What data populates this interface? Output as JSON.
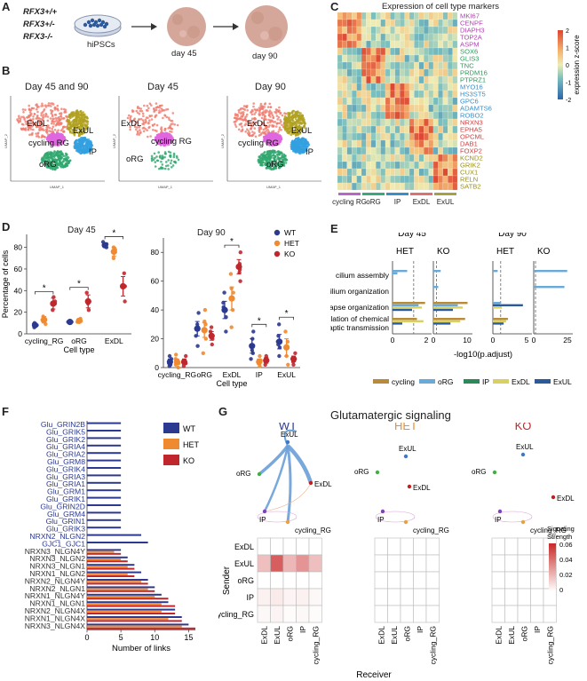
{
  "panel_letters": {
    "a": "A",
    "b": "B",
    "c": "C",
    "d": "D",
    "e": "E",
    "f": "F",
    "g": "G"
  },
  "panel_a": {
    "genotypes": [
      "RFX3+/+",
      "RFX3+/-",
      "RFX3-/-"
    ],
    "dish_label": "hiPSCs",
    "organoid_labels": [
      "day 45",
      "day 90"
    ]
  },
  "panel_b": {
    "titles": [
      "Day 45 and 90",
      "Day 45",
      "Day 90"
    ],
    "axis_x": "UMAP_1",
    "axis_y": "UMAP_2",
    "cluster_labels": [
      "ExDL",
      "ExUL",
      "cycling RG",
      "IP",
      "oRG"
    ],
    "cluster_colors": {
      "ExDL": "#f07c6e",
      "ExUL": "#b0a11f",
      "cycling RG": "#e066e0",
      "IP": "#33a0e0",
      "oRG": "#2fa86e"
    }
  },
  "panel_c": {
    "title": "Expression of cell type markers",
    "genes": [
      "MKI67",
      "CENPF",
      "DIAPH3",
      "TOP2A",
      "ASPM",
      "SOX6",
      "GLIS3",
      "TNC",
      "PRDM16",
      "PTPRZ1",
      "MYO16",
      "HS3ST5",
      "GPC6",
      "ADAMTS6",
      "ROBO2",
      "NRXN3",
      "EPHA5",
      "OPCML",
      "DAB1",
      "FOXP2",
      "KCND2",
      "GRIK2",
      "CUX1",
      "RELN",
      "SATB2"
    ],
    "gene_colors": [
      "#b044b0",
      "#b044b0",
      "#b044b0",
      "#b044b0",
      "#b044b0",
      "#2f9a5a",
      "#2f9a5a",
      "#2f9a5a",
      "#2f9a5a",
      "#2f9a5a",
      "#3a8fc8",
      "#3a8fc8",
      "#3a8fc8",
      "#3a8fc8",
      "#3a8fc8",
      "#d04040",
      "#d04040",
      "#d04040",
      "#d04040",
      "#d04040",
      "#9a9020",
      "#9a9020",
      "#9a9020",
      "#9a9020",
      "#9a9020"
    ],
    "groups": [
      "cycling RG",
      "oRG",
      "IP",
      "ExDL",
      "ExUL"
    ],
    "group_colors": [
      "#b866c8",
      "#3aa87a",
      "#3a8fc8",
      "#e07070",
      "#a8a040"
    ],
    "colorbar_label": "expression z-score",
    "colorbar_ticks": [
      "2",
      "1",
      "0",
      "-1",
      "-2"
    ]
  },
  "panel_d": {
    "ylabel": "Percentage of cells",
    "xlabel": "Cell type",
    "legend": [
      "WT",
      "HET",
      "KO"
    ],
    "legend_colors": [
      "#2b3990",
      "#f08a30",
      "#c0272d"
    ],
    "sig": "*",
    "day45": {
      "title": "Day 45",
      "categories": [
        "cycling_RG",
        "oRG",
        "ExDL"
      ],
      "yticks": [
        "0",
        "20",
        "40",
        "60",
        "80"
      ],
      "ymax": 92,
      "means": {
        "WT": [
          8,
          11,
          82
        ],
        "HET": [
          13,
          12,
          76
        ],
        "KO": [
          28,
          30,
          44
        ]
      },
      "errs": {
        "WT": [
          1.5,
          1,
          2
        ],
        "HET": [
          3,
          2,
          4
        ],
        "KO": [
          5,
          6,
          9
        ]
      },
      "points": {
        "WT": [
          [
            6,
            9,
            8,
            10
          ],
          [
            10,
            11,
            12,
            11
          ],
          [
            80,
            83,
            85,
            81
          ]
        ],
        "HET": [
          [
            9,
            13,
            16,
            12
          ],
          [
            11,
            12,
            14,
            13
          ],
          [
            70,
            78,
            80,
            76
          ]
        ],
        "KO": [
          [
            22,
            28,
            34,
            30
          ],
          [
            22,
            30,
            38,
            28
          ],
          [
            30,
            44,
            56,
            44
          ]
        ]
      }
    },
    "day90": {
      "title": "Day 90",
      "categories": [
        "cycling_RG",
        "oRG",
        "ExDL",
        "IP",
        "ExUL"
      ],
      "yticks": [
        "0",
        "20",
        "40",
        "60",
        "80"
      ],
      "ymax": 90,
      "means": {
        "WT": [
          4,
          27,
          40,
          15,
          18
        ],
        "HET": [
          4,
          26,
          48,
          4,
          14
        ],
        "KO": [
          4,
          22,
          70,
          5,
          6
        ]
      },
      "errs": {
        "WT": [
          2,
          5,
          6,
          5,
          5
        ],
        "HET": [
          2,
          5,
          8,
          2,
          6
        ],
        "KO": [
          2,
          3,
          5,
          2,
          2
        ]
      },
      "points": {
        "WT": [
          [
            1,
            3,
            6,
            8,
            2,
            4
          ],
          [
            15,
            22,
            30,
            38,
            27,
            28
          ],
          [
            25,
            35,
            45,
            52,
            40,
            42
          ],
          [
            6,
            10,
            20,
            25,
            12,
            15
          ],
          [
            8,
            14,
            22,
            30,
            16,
            18
          ]
        ],
        "HET": [
          [
            0,
            2,
            5,
            9,
            3,
            6
          ],
          [
            10,
            20,
            30,
            40,
            25,
            32
          ],
          [
            28,
            40,
            55,
            65,
            48,
            52
          ],
          [
            1,
            3,
            5,
            8,
            4,
            3
          ],
          [
            2,
            8,
            15,
            25,
            14,
            18
          ]
        ],
        "KO": [
          [
            1,
            3,
            5,
            8,
            4,
            3
          ],
          [
            16,
            20,
            25,
            28,
            22,
            21
          ],
          [
            60,
            66,
            72,
            80,
            70,
            68
          ],
          [
            2,
            4,
            6,
            8,
            5,
            4
          ],
          [
            2,
            4,
            6,
            10,
            6,
            5
          ]
        ]
      },
      "sig_pairs": [
        2,
        3,
        4
      ]
    }
  },
  "panel_e": {
    "day_labels": [
      "Day 45",
      "Day 90"
    ],
    "geno_labels": [
      "HET",
      "KO",
      "HET",
      "KO"
    ],
    "terms": [
      "cilium assembly",
      "cilium organization",
      "synapse organization",
      "modulation of chemical",
      "synaptic transmission"
    ],
    "xlabel": "-log10(p.adjust)",
    "xticks": [
      [
        "0",
        "2"
      ],
      [
        "0",
        "10"
      ],
      [
        "0",
        "5"
      ],
      [
        "0",
        "25"
      ]
    ],
    "legend": [
      "cycling",
      "oRG",
      "IP",
      "ExDL",
      "ExUL"
    ],
    "legend_colors": [
      "#b88a3a",
      "#6aaad8",
      "#2a8a5a",
      "#d8d060",
      "#2a5a9a"
    ],
    "facets": [
      {
        "max": 2.4,
        "bars": [
          [
            [
              1,
              0.9
            ],
            [
              1,
              0.3
            ]
          ],
          [],
          [
            [
              0,
              2.0
            ],
            [
              1,
              1.6
            ],
            [
              3,
              1.8
            ],
            [
              4,
              1.2
            ]
          ],
          [
            [
              0,
              1.5
            ],
            [
              3,
              1.9
            ],
            [
              4,
              0.6
            ]
          ]
        ]
      },
      {
        "max": 16,
        "bars": [
          [
            [
              1,
              3
            ]
          ],
          [
            [
              1,
              2
            ]
          ],
          [
            [
              0,
              14
            ],
            [
              1,
              10
            ],
            [
              3,
              12
            ],
            [
              4,
              8
            ]
          ],
          [
            [
              0,
              13
            ],
            [
              3,
              11
            ],
            [
              4,
              7
            ]
          ]
        ]
      },
      {
        "max": 6.5,
        "bars": [
          [
            [
              1,
              0.8
            ]
          ],
          [],
          [
            [
              1,
              1.2
            ],
            [
              4,
              5.0
            ],
            [
              3,
              1.5
            ]
          ],
          [
            [
              0,
              2.5
            ],
            [
              3,
              2.2
            ],
            [
              4,
              1.8
            ]
          ]
        ]
      },
      {
        "max": 28,
        "bars": [
          [
            [
              1,
              24
            ]
          ],
          [
            [
              1,
              22
            ]
          ],
          [],
          []
        ]
      }
    ]
  },
  "panel_f": {
    "labels": [
      "Glu_GRIN2B",
      "Glu_GRIK5",
      "Glu_GRIK2",
      "Glu_GRIA4",
      "Glu_GRIA2",
      "Glu_GRM8",
      "Glu_GRIK4",
      "Glu_GRIA3",
      "Glu_GRIA1",
      "Glu_GRM1",
      "Glu_GRIK1",
      "Glu_GRIN2D",
      "Glu_GRM4",
      "Glu_GRIN1",
      "Glu_GRIK3",
      "NRXN2_NLGN2",
      "GJC1_GJC1",
      "NRXN3_NLGN4Y",
      "NRXN3_NLGN2",
      "NRXN3_NLGN1",
      "NRXN1_NLGN2",
      "NRXN2_NLGN4Y",
      "NRXN2_NLGN1",
      "NRXN1_NLGN4Y",
      "NRXN1_NLGN1",
      "NRXN2_NLGN4X",
      "NRXN1_NLGN4X",
      "NRXN3_NLGN4X"
    ],
    "label_colors": [
      "#2b3990",
      "#2b3990",
      "#2b3990",
      "#2b3990",
      "#2b3990",
      "#2b3990",
      "#2b3990",
      "#2b3990",
      "#2b3990",
      "#2b3990",
      "#2b3990",
      "#2b3990",
      "#2b3990",
      "#2b3990",
      "#2b3990",
      "#2b3990",
      "#2b3990",
      "#333",
      "#333",
      "#333",
      "#333",
      "#333",
      "#333",
      "#333",
      "#333",
      "#333",
      "#333",
      "#333"
    ],
    "values": {
      "WT": [
        5,
        5,
        5,
        5,
        5,
        5,
        5,
        5,
        5,
        5,
        5,
        5,
        5,
        5,
        5,
        8,
        9,
        5,
        6,
        7,
        8,
        9,
        10,
        11,
        12,
        13,
        14,
        15
      ],
      "HET": [
        0,
        0,
        0,
        0,
        0,
        0,
        0,
        0,
        0,
        0,
        0,
        0,
        0,
        0,
        0,
        0,
        0,
        4,
        5,
        6,
        6,
        8,
        9,
        10,
        11,
        11,
        12,
        14
      ],
      "KO": [
        0,
        0,
        0,
        0,
        0,
        0,
        0,
        0,
        0,
        0,
        0,
        0,
        0,
        0,
        0,
        0,
        0,
        5,
        6,
        7,
        7,
        9,
        10,
        12,
        13,
        13,
        14,
        16
      ]
    },
    "xticks": [
      "0",
      "5",
      "10",
      "15"
    ],
    "xmax": 16,
    "xlabel": "Number of links",
    "legend": [
      "WT",
      "HET",
      "KO"
    ],
    "legend_colors": [
      "#2b3990",
      "#f08a30",
      "#c0272d"
    ]
  },
  "panel_g": {
    "title": "Glutamatergic signaling",
    "conditions": [
      "WT",
      "HET",
      "KO"
    ],
    "condition_colors": [
      "#2b3990",
      "#f08a30",
      "#c0272d"
    ],
    "nodes": [
      "ExUL",
      "oRG",
      "ExDL",
      "IP",
      "cycling_RG"
    ],
    "node_colors": [
      "#3a7ac8",
      "#40b040",
      "#c02020",
      "#8040c0",
      "#e8a040"
    ],
    "ylabel": "Sender",
    "xlabel": "Receiver",
    "matrix_labels": [
      "ExDL",
      "ExUL",
      "oRG",
      "IP",
      "cycling_RG"
    ],
    "colorbar_title": "Signaling Strength",
    "colorbar_ticks": [
      "0.06",
      "0.04",
      "0.02",
      "0"
    ],
    "vmax": 0.06,
    "matrices": [
      [
        [
          0,
          0,
          0,
          0,
          0
        ],
        [
          0.018,
          0.045,
          0.02,
          0.03,
          0.018
        ],
        [
          0,
          0,
          0,
          0,
          0
        ],
        [
          0.004,
          0.006,
          0.003,
          0.004,
          0.002
        ],
        [
          0.002,
          0.003,
          0.001,
          0.002,
          0.001
        ]
      ],
      [
        [
          0,
          0,
          0,
          0,
          0
        ],
        [
          0,
          0,
          0,
          0,
          0
        ],
        [
          0,
          0,
          0,
          0,
          0
        ],
        [
          0,
          0,
          0,
          0,
          0
        ],
        [
          0,
          0,
          0,
          0,
          0
        ]
      ],
      [
        [
          0,
          0,
          0,
          0,
          0
        ],
        [
          0,
          0,
          0,
          0,
          0
        ],
        [
          0,
          0,
          0,
          0,
          0
        ],
        [
          0,
          0,
          0,
          0,
          0
        ],
        [
          0,
          0,
          0,
          0,
          0
        ]
      ]
    ]
  }
}
